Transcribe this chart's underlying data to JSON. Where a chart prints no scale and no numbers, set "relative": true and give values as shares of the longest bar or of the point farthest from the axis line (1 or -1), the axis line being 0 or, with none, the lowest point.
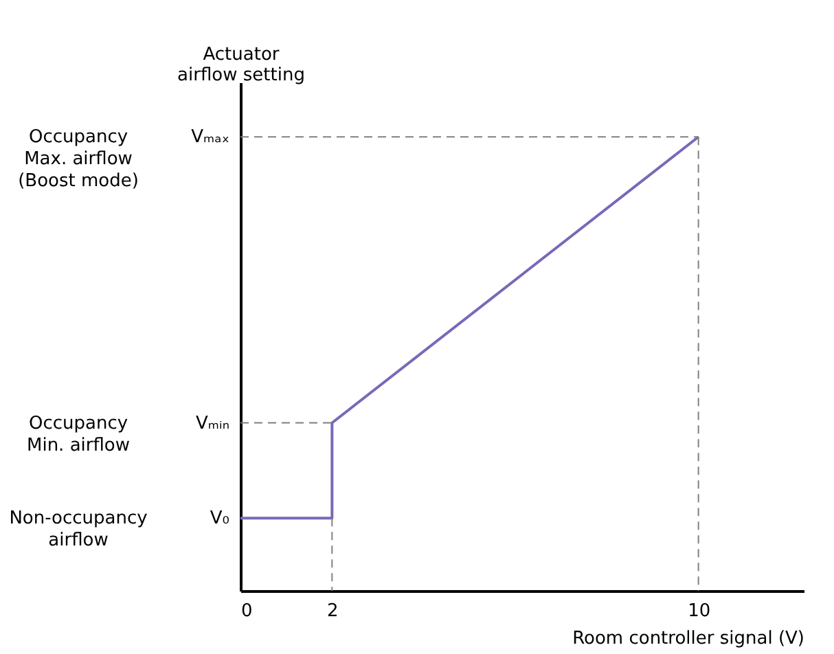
{
  "chart_data": {
    "type": "line",
    "xlabel": "Room controller signal (V)",
    "ylabel": "Actuator airflow setting",
    "xlim": [
      0,
      12.3
    ],
    "xticks": [
      0,
      2,
      10
    ],
    "relative": true,
    "grid": false,
    "line_style": "solid",
    "annotations": [
      "Occupancy Max. airflow (Boost mode)",
      "Vₘₐₓ",
      "Occupancy Min. airflow",
      "Vₘᵢₙ",
      "Non-occupancy airflow",
      "V₀"
    ],
    "series": [
      {
        "x": [
          0,
          2,
          2,
          10
        ],
        "values": [
          0.16,
          0.16,
          0.37,
          1
        ],
        "color": "#7b68b8"
      },
      {
        "x": [
          0,
          10
        ],
        "values": [
          1,
          1
        ],
        "color": "#808080",
        "line_style": "dashed"
      },
      {
        "x": [
          10,
          10
        ],
        "values": [
          1,
          0
        ],
        "color": "#808080",
        "line_style": "dashed"
      },
      {
        "x": [
          0,
          2
        ],
        "values": [
          0.37,
          0.37
        ],
        "color": "#7e7e7e",
        "line_style": "dashed"
      },
      {
        "x": [
          2,
          2
        ],
        "values": [
          0.16,
          0
        ],
        "color": "#828282",
        "line_style": "dashed"
      }
    ]
  }
}
